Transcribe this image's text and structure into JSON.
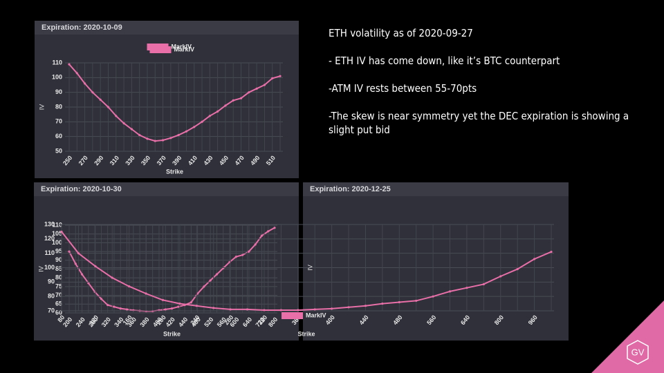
{
  "chart_data": [
    {
      "type": "line",
      "title": "Expiration: 2020-10-09",
      "x_label": "Strike",
      "y_label": "IV",
      "categories": [
        250,
        null,
        270,
        null,
        290,
        null,
        310,
        null,
        330,
        null,
        350,
        null,
        370,
        null,
        390,
        null,
        410,
        null,
        430,
        null,
        450,
        null,
        470,
        null,
        490,
        null,
        510,
        null
      ],
      "series": [
        {
          "name": "MarkIV",
          "color": "#e86fa8",
          "values": [
            109,
            103,
            96,
            90,
            85,
            80,
            74,
            69,
            65,
            61,
            58.5,
            57,
            57.5,
            59,
            61,
            63.5,
            66.5,
            70,
            74,
            77,
            81,
            84.5,
            86,
            90,
            92.5,
            95,
            99.5,
            101
          ]
        }
      ],
      "ylim": [
        50,
        110
      ],
      "yticks": [
        50,
        60,
        70,
        80,
        90,
        100,
        110
      ],
      "grid": true,
      "legend": "top"
    },
    {
      "type": "line",
      "title": "Expiration: 2020-10-30",
      "x_label": "Strike",
      "y_label": "IV",
      "categories": [
        200,
        null,
        240,
        null,
        280,
        null,
        320,
        null,
        340,
        null,
        360,
        null,
        380,
        null,
        400,
        null,
        420,
        null,
        440,
        null,
        480,
        null,
        520,
        null,
        560,
        null,
        600,
        null,
        640,
        null,
        720,
        null,
        800
      ],
      "series": [
        {
          "name": "MarkIV",
          "color": "#e86fa8",
          "values": [
            95,
            88,
            82,
            77,
            72,
            68,
            64.5,
            63.5,
            62.5,
            62,
            61.5,
            61.2,
            61,
            61,
            61.5,
            62,
            62.5,
            63.5,
            64.5,
            66,
            71,
            75,
            78.5,
            82,
            85.5,
            89,
            92,
            93,
            95,
            99,
            104,
            106.5,
            108.5
          ]
        }
      ],
      "ylim": [
        60,
        110
      ],
      "yticks": [
        60,
        65,
        70,
        75,
        80,
        85,
        90,
        95,
        100,
        105,
        110
      ],
      "grid": true,
      "legend": "top"
    },
    {
      "type": "line",
      "title": "Expiration: 2020-12-25",
      "x_label": "Strike",
      "y_label": "IV",
      "categories": [
        80,
        null,
        120,
        null,
        160,
        null,
        200,
        null,
        240,
        null,
        280,
        null,
        320,
        null,
        360,
        null,
        400,
        null,
        440,
        null,
        480,
        null,
        560,
        null,
        640,
        null,
        800,
        null,
        960,
        null
      ],
      "series": [
        {
          "name": "MarkIV",
          "color": "#e86fa8",
          "values": [
            125,
            110,
            101,
            93,
            87,
            82,
            77.5,
            75,
            73.5,
            72,
            71,
            71,
            70.5,
            70.5,
            70.5,
            71,
            71.5,
            72.5,
            73.5,
            75,
            76,
            77,
            80,
            83.5,
            86,
            88.5,
            94,
            99,
            106,
            111
          ]
        }
      ],
      "ylim": [
        70,
        130
      ],
      "yticks": [
        70,
        80,
        90,
        100,
        110,
        120,
        130
      ],
      "grid": true,
      "legend": "top"
    }
  ],
  "notes": {
    "heading": "ETH volatility as of 2020-09-27",
    "points": [
      "- ETH IV has come down, like it’s BTC counterpart",
      "-ATM IV rests between 55-70pts",
      "-The skew is near symmetry yet the DEC expiration is showing a slight put bid"
    ]
  },
  "logo": "GV"
}
